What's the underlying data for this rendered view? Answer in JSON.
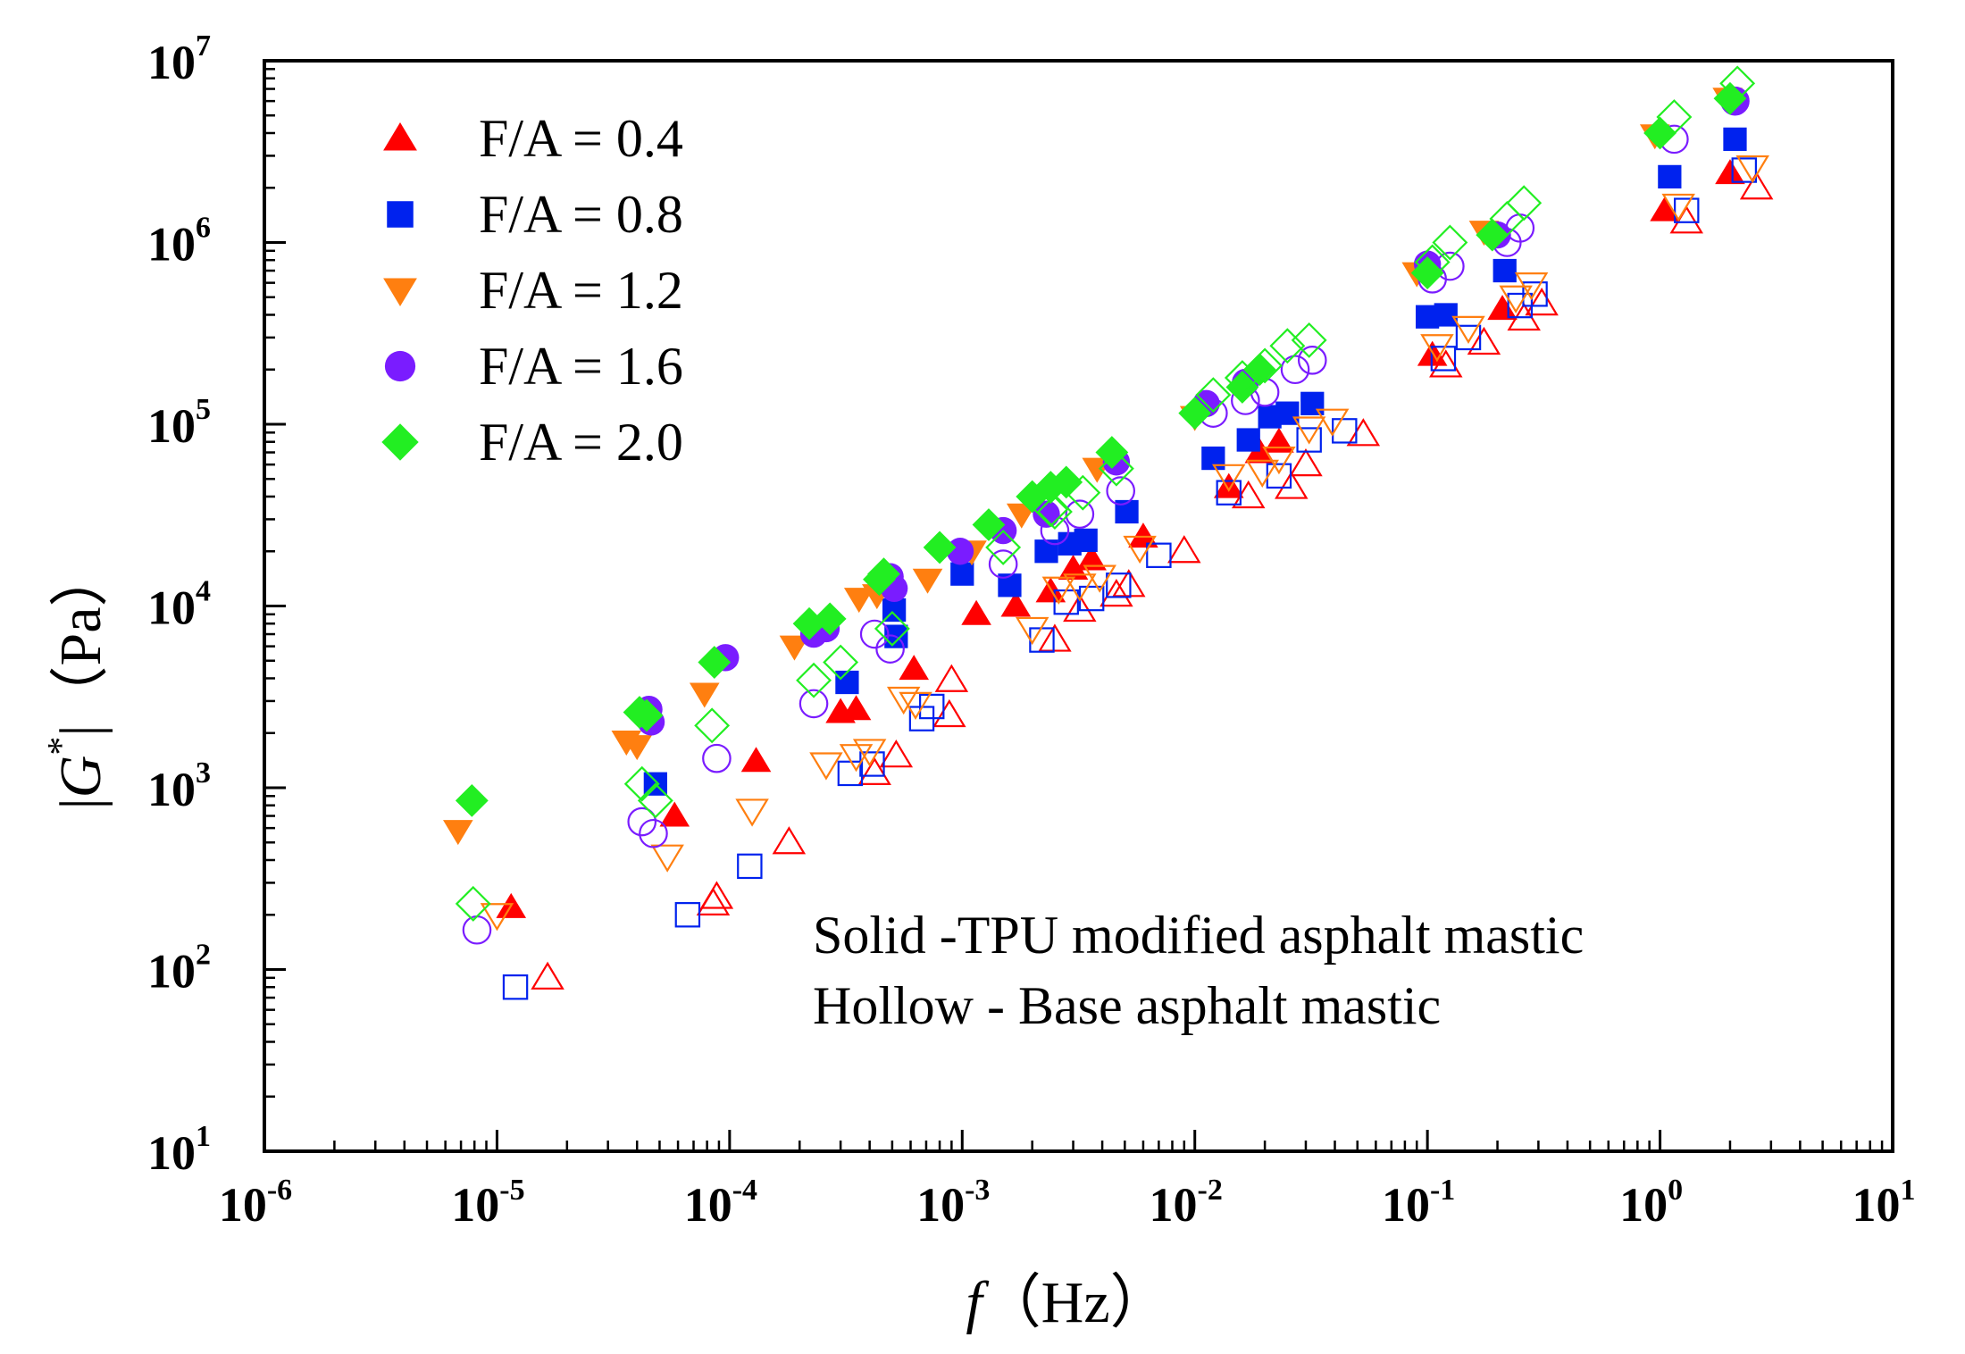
{
  "chart_data": {
    "type": "scatter",
    "title": "",
    "xlabel": {
      "italic_part": "f",
      "rest": "（Hz）"
    },
    "ylabel": {
      "prefix": "|",
      "symbol": "G",
      "superscript": "*",
      "rest": "|（Pa）"
    },
    "xscale": "log",
    "yscale": "log",
    "xlim": [
      1e-06,
      10
    ],
    "ylim": [
      10,
      10000000.0
    ],
    "x_ticks": [
      {
        "base": "10",
        "exp": "-6"
      },
      {
        "base": "10",
        "exp": "-5"
      },
      {
        "base": "10",
        "exp": "-4"
      },
      {
        "base": "10",
        "exp": "-3"
      },
      {
        "base": "10",
        "exp": "-2"
      },
      {
        "base": "10",
        "exp": "-1"
      },
      {
        "base": "10",
        "exp": "0"
      },
      {
        "base": "10",
        "exp": "1"
      }
    ],
    "y_ticks": [
      {
        "base": "10",
        "exp": "1"
      },
      {
        "base": "10",
        "exp": "2"
      },
      {
        "base": "10",
        "exp": "3"
      },
      {
        "base": "10",
        "exp": "4"
      },
      {
        "base": "10",
        "exp": "5"
      },
      {
        "base": "10",
        "exp": "6"
      },
      {
        "base": "10",
        "exp": "7"
      }
    ],
    "legend_position": "top-left",
    "annotations": [
      "Solid -TPU modified asphalt mastic",
      "Hollow - Base asphalt mastic"
    ],
    "series": [
      {
        "name": "F/A = 0.4",
        "marker": "triangle-up",
        "color": "#ff0000",
        "fill": "solid",
        "points": [
          [
            1.15e-05,
            220
          ],
          [
            5.8e-05,
            700
          ],
          [
            0.00013,
            1400
          ],
          [
            0.0003,
            2600
          ],
          [
            0.00035,
            2700
          ],
          [
            0.00062,
            4500
          ],
          [
            0.00115,
            9000
          ],
          [
            0.0017,
            10000
          ],
          [
            0.0024,
            12000
          ],
          [
            0.003,
            16000
          ],
          [
            0.0036,
            18000
          ],
          [
            0.006,
            24000
          ],
          [
            0.014,
            45000
          ],
          [
            0.019,
            70000
          ],
          [
            0.023,
            80000
          ],
          [
            0.105,
            240000
          ],
          [
            0.21,
            430000
          ],
          [
            1.05,
            1500000
          ],
          [
            2.0,
            2400000
          ]
        ]
      },
      {
        "name": "F/A = 0.4",
        "marker": "triangle-up",
        "color": "#ff0000",
        "fill": "hollow",
        "points": [
          [
            1.65e-05,
            90
          ],
          [
            8.5e-05,
            230
          ],
          [
            8.8e-05,
            250
          ],
          [
            0.00018,
            500
          ],
          [
            0.00042,
            1200
          ],
          [
            0.00052,
            1500
          ],
          [
            0.00088,
            2500
          ],
          [
            0.0009,
            3900
          ],
          [
            0.0025,
            6500
          ],
          [
            0.0032,
            9500
          ],
          [
            0.0046,
            11500
          ],
          [
            0.0052,
            13000
          ],
          [
            0.009,
            20000
          ],
          [
            0.017,
            40000
          ],
          [
            0.026,
            45000
          ],
          [
            0.03,
            60000
          ],
          [
            0.053,
            88000
          ],
          [
            0.12,
            210000
          ],
          [
            0.175,
            280000
          ],
          [
            0.26,
            380000
          ],
          [
            0.31,
            460000
          ],
          [
            1.3,
            1300000
          ],
          [
            2.6,
            2000000
          ]
        ]
      },
      {
        "name": "F/A = 0.8",
        "marker": "square",
        "color": "#0022ee",
        "fill": "solid",
        "points": [
          [
            4.8e-05,
            1050
          ],
          [
            0.00032,
            3800
          ],
          [
            0.00051,
            9500
          ],
          [
            0.00052,
            6800
          ],
          [
            0.001,
            15000
          ],
          [
            0.0016,
            13000
          ],
          [
            0.0023,
            20000
          ],
          [
            0.0029,
            22000
          ],
          [
            0.0034,
            23000
          ],
          [
            0.0051,
            33000
          ],
          [
            0.012,
            65000
          ],
          [
            0.017,
            82000
          ],
          [
            0.021,
            110000
          ],
          [
            0.025,
            115000
          ],
          [
            0.032,
            130000
          ],
          [
            0.1,
            390000
          ],
          [
            0.12,
            400000
          ],
          [
            0.215,
            700000
          ],
          [
            1.1,
            2300000
          ],
          [
            2.1,
            3700000
          ]
        ]
      },
      {
        "name": "F/A = 0.8",
        "marker": "square",
        "color": "#0022ee",
        "fill": "hollow",
        "points": [
          [
            1.2e-05,
            80
          ],
          [
            6.6e-05,
            200
          ],
          [
            0.000122,
            370
          ],
          [
            0.00033,
            1200
          ],
          [
            0.00041,
            1350
          ],
          [
            0.00067,
            2400
          ],
          [
            0.00074,
            2800
          ],
          [
            0.0022,
            6500
          ],
          [
            0.0028,
            10500
          ],
          [
            0.0036,
            11000
          ],
          [
            0.0047,
            13000
          ],
          [
            0.007,
            19000
          ],
          [
            0.014,
            42000
          ],
          [
            0.023,
            52000
          ],
          [
            0.031,
            82000
          ],
          [
            0.044,
            92000
          ],
          [
            0.117,
            230000
          ],
          [
            0.15,
            300000
          ],
          [
            0.25,
            450000
          ],
          [
            0.29,
            520000
          ],
          [
            1.3,
            1500000
          ],
          [
            2.3,
            2500000
          ]
        ]
      },
      {
        "name": "F/A = 1.2",
        "marker": "triangle-down",
        "color": "#ff7f10",
        "fill": "solid",
        "points": [
          [
            6.8e-06,
            580
          ],
          [
            3.6e-05,
            1800
          ],
          [
            4e-05,
            1700
          ],
          [
            7.8e-05,
            3300
          ],
          [
            0.00019,
            6000
          ],
          [
            0.00036,
            11000
          ],
          [
            0.00043,
            11500
          ],
          [
            0.00071,
            14000
          ],
          [
            0.0011,
            20000
          ],
          [
            0.0018,
            32000
          ],
          [
            0.0038,
            57000
          ],
          [
            0.01,
            110000
          ],
          [
            0.09,
            680000
          ],
          [
            0.175,
            1150000
          ],
          [
            0.95,
            3900000
          ],
          [
            1.95,
            6200000
          ]
        ]
      },
      {
        "name": "F/A = 1.2",
        "marker": "triangle-down",
        "color": "#ff7f10",
        "fill": "hollow",
        "points": [
          [
            1e-05,
            200
          ],
          [
            5.4e-05,
            420
          ],
          [
            0.000125,
            750
          ],
          [
            0.00026,
            1350
          ],
          [
            0.00035,
            1500
          ],
          [
            0.0004,
            1600
          ],
          [
            0.00056,
            3100
          ],
          [
            0.00063,
            2900
          ],
          [
            0.002,
            7500
          ],
          [
            0.0026,
            12500
          ],
          [
            0.0032,
            13000
          ],
          [
            0.0039,
            14500
          ],
          [
            0.0058,
            21000
          ],
          [
            0.014,
            52000
          ],
          [
            0.0195,
            55000
          ],
          [
            0.023,
            65000
          ],
          [
            0.031,
            95000
          ],
          [
            0.039,
            105000
          ],
          [
            0.11,
            270000
          ],
          [
            0.15,
            340000
          ],
          [
            0.24,
            500000
          ],
          [
            0.28,
            590000
          ],
          [
            1.2,
            1600000
          ],
          [
            2.5,
            2600000
          ]
        ]
      },
      {
        "name": "F/A = 1.6",
        "marker": "circle",
        "color": "#7a1cff",
        "fill": "solid",
        "points": [
          [
            4.5e-05,
            2700
          ],
          [
            4.6e-05,
            2300
          ],
          [
            9.6e-05,
            5200
          ],
          [
            0.00023,
            7000
          ],
          [
            0.00026,
            7500
          ],
          [
            0.00049,
            14500
          ],
          [
            0.00051,
            12500
          ],
          [
            0.00098,
            20000
          ],
          [
            0.0015,
            26000
          ],
          [
            0.0023,
            32000
          ],
          [
            0.0046,
            62000
          ],
          [
            0.0112,
            130000
          ],
          [
            0.0165,
            170000
          ],
          [
            0.1,
            760000
          ],
          [
            0.2,
            1100000
          ],
          [
            2.1,
            6000000
          ]
        ]
      },
      {
        "name": "F/A = 1.6",
        "marker": "circle",
        "color": "#7a1cff",
        "fill": "hollow",
        "points": [
          [
            8.2e-06,
            165
          ],
          [
            4.2e-05,
            650
          ],
          [
            4.7e-05,
            560
          ],
          [
            8.8e-05,
            1450
          ],
          [
            0.00023,
            2900
          ],
          [
            0.00042,
            7000
          ],
          [
            0.00049,
            5800
          ],
          [
            0.0015,
            17000
          ],
          [
            0.0025,
            26000
          ],
          [
            0.0032,
            32000
          ],
          [
            0.0048,
            43000
          ],
          [
            0.012,
            115000
          ],
          [
            0.0165,
            135000
          ],
          [
            0.02,
            150000
          ],
          [
            0.027,
            200000
          ],
          [
            0.032,
            225000
          ],
          [
            0.105,
            630000
          ],
          [
            0.125,
            740000
          ],
          [
            0.22,
            1000000
          ],
          [
            0.25,
            1200000
          ],
          [
            1.15,
            3700000
          ],
          [
            2.1,
            6000000
          ]
        ]
      },
      {
        "name": "F/A = 2.0",
        "marker": "diamond",
        "color": "#22ee22",
        "fill": "solid",
        "points": [
          [
            7.8e-06,
            850
          ],
          [
            4.1e-05,
            2600
          ],
          [
            4.4e-05,
            2500
          ],
          [
            8.6e-05,
            4900
          ],
          [
            0.00022,
            8000
          ],
          [
            0.00027,
            8500
          ],
          [
            0.00044,
            14000
          ],
          [
            0.00046,
            15000
          ],
          [
            0.0008,
            21000
          ],
          [
            0.0013,
            28000
          ],
          [
            0.002,
            40000
          ],
          [
            0.0024,
            45000
          ],
          [
            0.0028,
            48000
          ],
          [
            0.0044,
            70000
          ],
          [
            0.01,
            115000
          ],
          [
            0.016,
            160000
          ],
          [
            0.019,
            200000
          ],
          [
            0.1,
            680000
          ],
          [
            0.19,
            1100000
          ],
          [
            1.0,
            4000000
          ],
          [
            2.0,
            6200000
          ]
        ]
      },
      {
        "name": "F/A = 2.0",
        "marker": "diamond",
        "color": "#22ee22",
        "fill": "hollow",
        "points": [
          [
            7.9e-06,
            230
          ],
          [
            4.2e-05,
            1050
          ],
          [
            4.8e-05,
            850
          ],
          [
            8.4e-05,
            2200
          ],
          [
            0.00023,
            3900
          ],
          [
            0.0003,
            4900
          ],
          [
            0.0005,
            7500
          ],
          [
            0.0015,
            21000
          ],
          [
            0.0024,
            34000
          ],
          [
            0.0025,
            33000
          ],
          [
            0.0033,
            42000
          ],
          [
            0.0046,
            57000
          ],
          [
            0.012,
            145000
          ],
          [
            0.016,
            180000
          ],
          [
            0.02,
            210000
          ],
          [
            0.025,
            270000
          ],
          [
            0.031,
            290000
          ],
          [
            0.105,
            780000
          ],
          [
            0.125,
            1000000
          ],
          [
            0.22,
            1350000
          ],
          [
            0.26,
            1650000
          ],
          [
            1.15,
            4900000
          ],
          [
            2.15,
            7500000
          ]
        ]
      }
    ]
  },
  "legend": {
    "items": [
      {
        "label": "F/A = 0.4",
        "marker": "triangle-up",
        "color": "#ff0000"
      },
      {
        "label": "F/A = 0.8",
        "marker": "square",
        "color": "#0022ee"
      },
      {
        "label": "F/A = 1.2",
        "marker": "triangle-down",
        "color": "#ff7f10"
      },
      {
        "label": "F/A = 1.6",
        "marker": "circle",
        "color": "#7a1cff"
      },
      {
        "label": "F/A = 2.0",
        "marker": "diamond",
        "color": "#22ee22"
      }
    ]
  }
}
